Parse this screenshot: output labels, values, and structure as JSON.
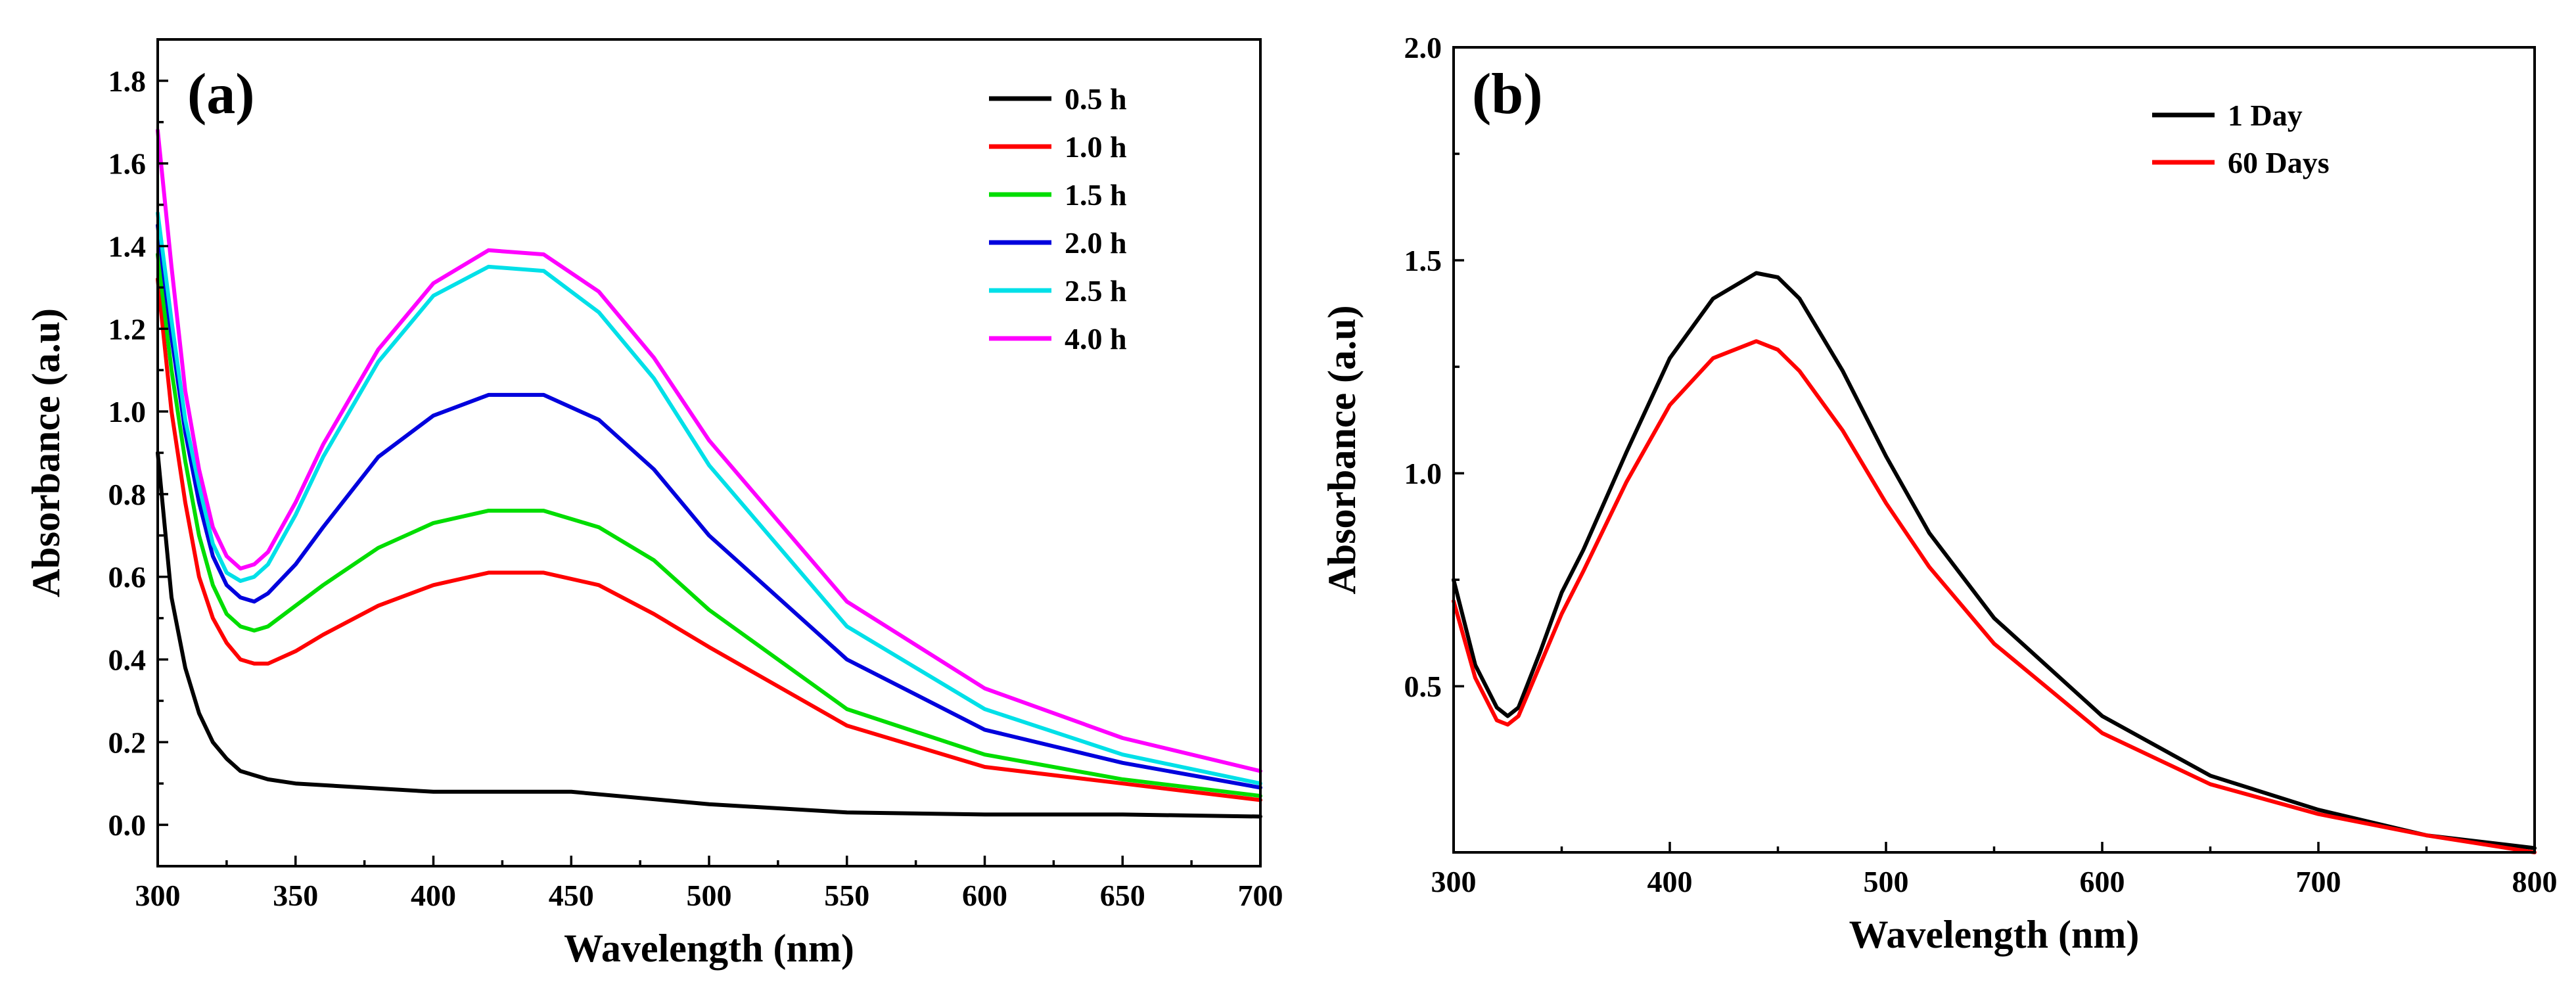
{
  "chart_data": [
    {
      "panel": "(a)",
      "type": "line",
      "xlabel": "Wavelength (nm)",
      "ylabel": "Absorbance (a.u)",
      "xlim": [
        300,
        700
      ],
      "ylim": [
        -0.1,
        1.9
      ],
      "xticks": [
        300,
        350,
        400,
        450,
        500,
        550,
        600,
        650,
        700
      ],
      "yticks": [
        0.0,
        0.2,
        0.4,
        0.6,
        0.8,
        1.0,
        1.2,
        1.4,
        1.6,
        1.8
      ],
      "tick_decimals": 1,
      "legend_position": "top-right",
      "series": [
        {
          "name": "0.5 h",
          "color": "#000000",
          "x": [
            300,
            305,
            310,
            315,
            320,
            325,
            330,
            340,
            350,
            400,
            450,
            500,
            550,
            600,
            650,
            700
          ],
          "y": [
            0.9,
            0.55,
            0.38,
            0.27,
            0.2,
            0.16,
            0.13,
            0.11,
            0.1,
            0.08,
            0.08,
            0.05,
            0.03,
            0.025,
            0.025,
            0.02
          ]
        },
        {
          "name": "1.0 h",
          "color": "#ff0000",
          "x": [
            300,
            305,
            310,
            315,
            320,
            325,
            330,
            335,
            340,
            350,
            360,
            380,
            400,
            420,
            440,
            460,
            480,
            500,
            550,
            600,
            650,
            700
          ],
          "y": [
            1.32,
            1.0,
            0.78,
            0.6,
            0.5,
            0.44,
            0.4,
            0.39,
            0.39,
            0.42,
            0.46,
            0.53,
            0.58,
            0.61,
            0.61,
            0.58,
            0.51,
            0.43,
            0.24,
            0.14,
            0.1,
            0.06
          ]
        },
        {
          "name": "1.5 h",
          "color": "#00dd00",
          "x": [
            300,
            305,
            310,
            315,
            320,
            325,
            330,
            335,
            340,
            350,
            360,
            380,
            400,
            420,
            440,
            460,
            480,
            500,
            550,
            600,
            650,
            700
          ],
          "y": [
            1.38,
            1.1,
            0.88,
            0.7,
            0.58,
            0.51,
            0.48,
            0.47,
            0.48,
            0.53,
            0.58,
            0.67,
            0.73,
            0.76,
            0.76,
            0.72,
            0.64,
            0.52,
            0.28,
            0.17,
            0.11,
            0.07
          ]
        },
        {
          "name": "2.0 h",
          "color": "#0000dd",
          "x": [
            300,
            305,
            310,
            315,
            320,
            325,
            330,
            335,
            340,
            350,
            360,
            380,
            400,
            420,
            440,
            460,
            480,
            500,
            550,
            600,
            650,
            700
          ],
          "y": [
            1.45,
            1.18,
            0.95,
            0.78,
            0.65,
            0.58,
            0.55,
            0.54,
            0.56,
            0.63,
            0.72,
            0.89,
            0.99,
            1.04,
            1.04,
            0.98,
            0.86,
            0.7,
            0.4,
            0.23,
            0.15,
            0.09
          ]
        },
        {
          "name": "2.5 h",
          "color": "#00e0e8",
          "x": [
            300,
            305,
            310,
            315,
            320,
            325,
            330,
            335,
            340,
            350,
            360,
            380,
            400,
            420,
            440,
            460,
            480,
            500,
            550,
            600,
            650,
            700
          ],
          "y": [
            1.48,
            1.22,
            0.98,
            0.82,
            0.68,
            0.61,
            0.59,
            0.6,
            0.63,
            0.75,
            0.89,
            1.12,
            1.28,
            1.35,
            1.34,
            1.24,
            1.08,
            0.87,
            0.48,
            0.28,
            0.17,
            0.1
          ]
        },
        {
          "name": "4.0 h",
          "color": "#ff00ff",
          "x": [
            300,
            305,
            310,
            315,
            320,
            325,
            330,
            335,
            340,
            350,
            360,
            380,
            400,
            420,
            440,
            460,
            480,
            500,
            550,
            600,
            650,
            700
          ],
          "y": [
            1.68,
            1.35,
            1.05,
            0.86,
            0.72,
            0.65,
            0.62,
            0.63,
            0.66,
            0.78,
            0.92,
            1.15,
            1.31,
            1.39,
            1.38,
            1.29,
            1.13,
            0.93,
            0.54,
            0.33,
            0.21,
            0.13
          ]
        }
      ]
    },
    {
      "panel": "(b)",
      "type": "line",
      "xlabel": "Wavelength (nm)",
      "ylabel": "Absorbance (a.u)",
      "xlim": [
        300,
        800
      ],
      "ylim": [
        0.11,
        2.0
      ],
      "xticks": [
        300,
        400,
        500,
        600,
        700,
        800
      ],
      "yticks": [
        0.5,
        1.0,
        1.5,
        2.0
      ],
      "tick_decimals": 1,
      "legend_position": "top-right",
      "series": [
        {
          "name": "1 Day",
          "color": "#000000",
          "x": [
            300,
            310,
            320,
            325,
            330,
            340,
            350,
            360,
            380,
            400,
            420,
            440,
            450,
            460,
            480,
            500,
            520,
            550,
            600,
            650,
            700,
            750,
            800
          ],
          "y": [
            0.75,
            0.55,
            0.45,
            0.43,
            0.45,
            0.58,
            0.72,
            0.82,
            1.05,
            1.27,
            1.41,
            1.47,
            1.46,
            1.41,
            1.24,
            1.04,
            0.86,
            0.66,
            0.43,
            0.29,
            0.21,
            0.15,
            0.12
          ]
        },
        {
          "name": "60 Days",
          "color": "#ff0000",
          "x": [
            300,
            310,
            320,
            325,
            330,
            340,
            350,
            360,
            380,
            400,
            420,
            440,
            450,
            460,
            480,
            500,
            520,
            550,
            600,
            650,
            700,
            750,
            800
          ],
          "y": [
            0.7,
            0.52,
            0.42,
            0.41,
            0.43,
            0.55,
            0.67,
            0.77,
            0.98,
            1.16,
            1.27,
            1.31,
            1.29,
            1.24,
            1.1,
            0.93,
            0.78,
            0.6,
            0.39,
            0.27,
            0.2,
            0.15,
            0.11
          ]
        }
      ]
    }
  ]
}
